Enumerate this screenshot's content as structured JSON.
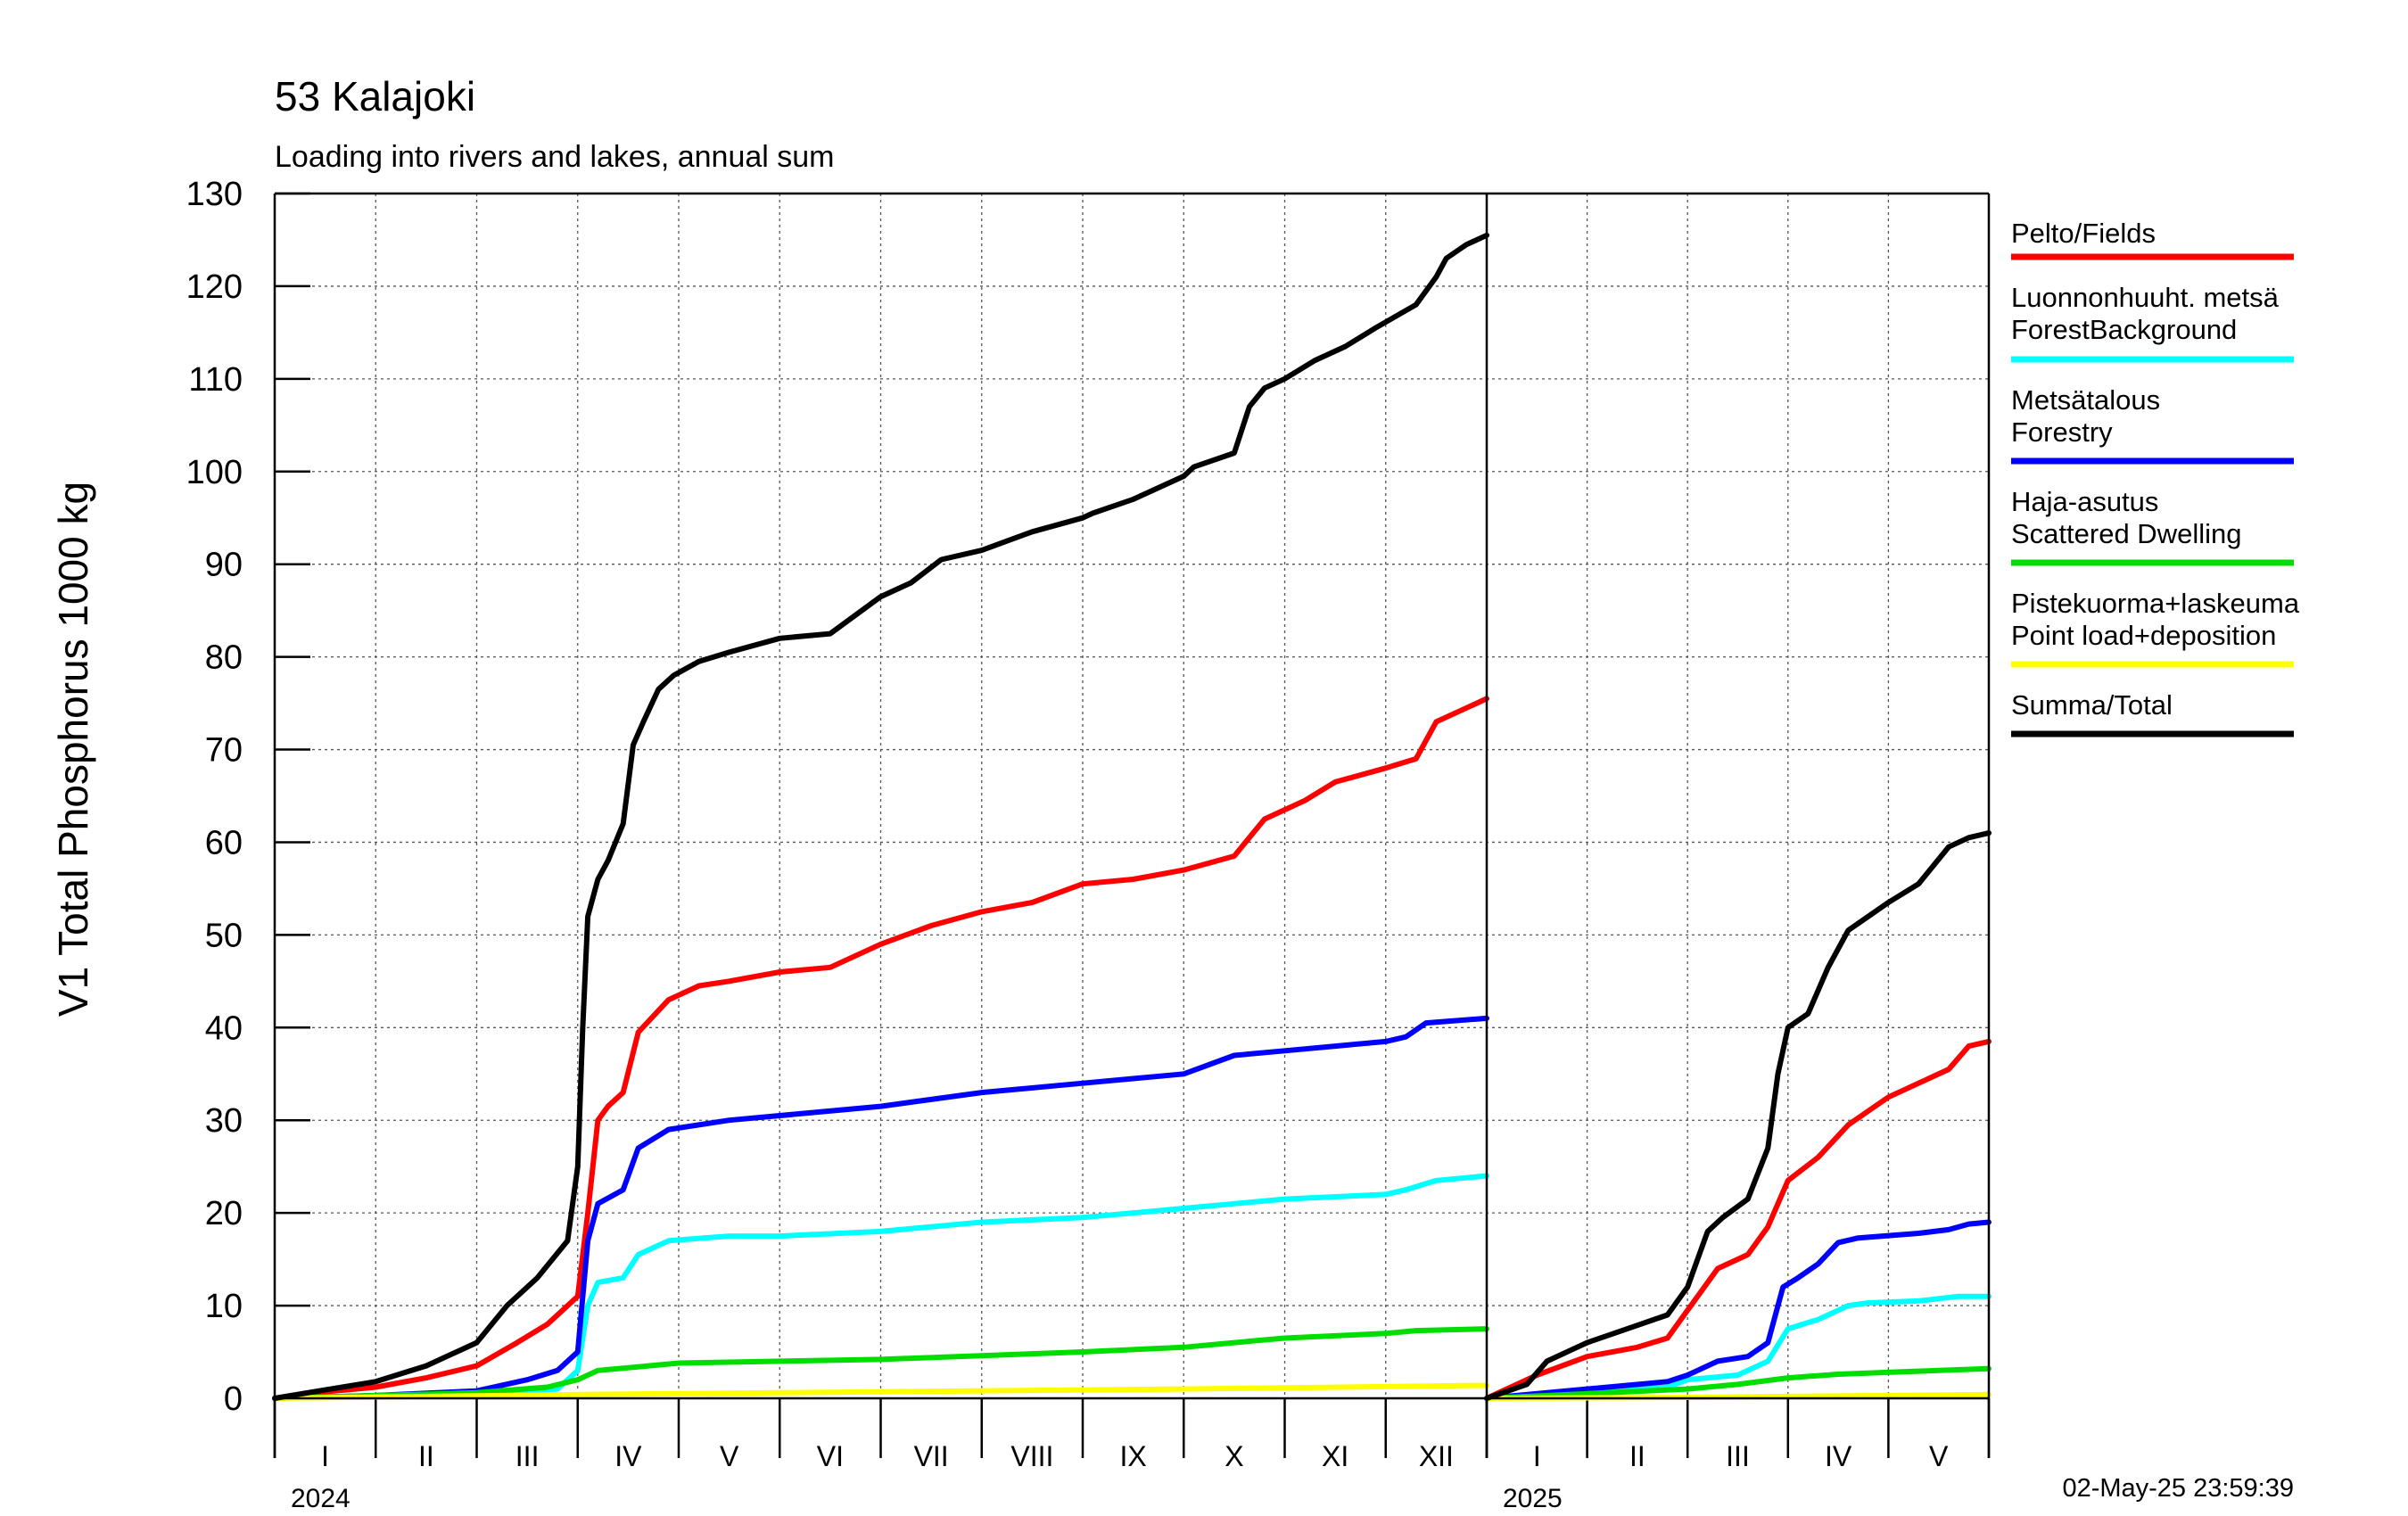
{
  "header": {
    "title": "53 Kalajoki",
    "subtitle": "Loading into rivers and lakes, annual sum"
  },
  "timestamp": "02-May-25 23:59:39",
  "chart_data": {
    "type": "line",
    "ylabel": "V1 Total Phosphorus 1000 kg",
    "ylim": [
      0,
      130
    ],
    "yticks": [
      "0",
      "10",
      "20",
      "30",
      "40",
      "50",
      "60",
      "70",
      "80",
      "90",
      "100",
      "110",
      "120",
      "130"
    ],
    "grid": true,
    "legend_position": "right",
    "panels": [
      {
        "year": "2024",
        "months": [
          "I",
          "II",
          "III",
          "IV",
          "V",
          "VI",
          "VII",
          "VIII",
          "IX",
          "X",
          "XI",
          "XII"
        ],
        "x_unit": "month",
        "series": [
          {
            "name": "Pelto/Fields",
            "color": "#ff0000",
            "x": [
              0,
              0.5,
              1,
              1.5,
              2,
              2.4,
              2.7,
              3.0,
              3.1,
              3.2,
              3.3,
              3.45,
              3.6,
              3.9,
              4.2,
              4.5,
              5,
              5.5,
              6,
              6.5,
              7,
              7.5,
              8,
              8.5,
              9,
              9.5,
              9.8,
              10.2,
              10.5,
              11,
              11.3,
              11.5,
              11.8,
              12
            ],
            "y": [
              0,
              0.7,
              1.2,
              2.2,
              3.5,
              6,
              8,
              11,
              20,
              30,
              31.5,
              33,
              39.5,
              43,
              44.5,
              45,
              46,
              46.5,
              49,
              51,
              52.5,
              53.5,
              55.5,
              56,
              57,
              58.5,
              62.5,
              64.5,
              66.5,
              68,
              69,
              73,
              74.5,
              75.5
            ]
          },
          {
            "name": "Luonnonhuuht. metsä ForestBackground",
            "color": "#00ffff",
            "x": [
              0,
              1,
              2,
              2.8,
              3.0,
              3.1,
              3.2,
              3.45,
              3.6,
              3.9,
              4.5,
              5,
              6,
              7,
              8,
              9,
              9.5,
              10,
              11,
              11.2,
              11.5,
              12
            ],
            "y": [
              0,
              0.2,
              0.4,
              1.0,
              3,
              10,
              12.5,
              13,
              15.5,
              17,
              17.5,
              17.5,
              18,
              19,
              19.5,
              20.5,
              21,
              21.5,
              22,
              22.5,
              23.5,
              24
            ]
          },
          {
            "name": "Metsätalous Forestry",
            "color": "#0000ff",
            "x": [
              0,
              1,
              2,
              2.5,
              2.8,
              3.0,
              3.1,
              3.2,
              3.45,
              3.6,
              3.9,
              4.5,
              5,
              6,
              7,
              8,
              8.5,
              9,
              9.5,
              10,
              10.5,
              11,
              11.2,
              11.4,
              12
            ],
            "y": [
              0,
              0.3,
              0.8,
              2.0,
              3.0,
              5,
              17,
              21,
              22.5,
              27,
              29,
              30,
              30.5,
              31.5,
              33,
              34,
              34.5,
              35,
              37,
              37.5,
              38,
              38.5,
              39,
              40.5,
              41
            ]
          },
          {
            "name": "Haja-asutus Scattered Dwelling",
            "color": "#00dd00",
            "x": [
              0,
              2,
              2.7,
              3.0,
              3.2,
              3.5,
              4,
              6,
              8,
              9,
              9.5,
              10,
              11,
              11.3,
              12
            ],
            "y": [
              0,
              0.6,
              1.2,
              2.0,
              3.0,
              3.3,
              3.8,
              4.2,
              5,
              5.5,
              6.0,
              6.5,
              7,
              7.3,
              7.5
            ]
          },
          {
            "name": "Pistekuorma+laskeuma Point load+deposition",
            "color": "#ffff00",
            "x": [
              0,
              3,
              6,
              9,
              12
            ],
            "y": [
              0,
              0.4,
              0.7,
              1.0,
              1.4
            ]
          },
          {
            "name": "Summa/Total",
            "color": "#000000",
            "x": [
              0,
              0.5,
              1,
              1.5,
              2,
              2.3,
              2.6,
              2.9,
              3.0,
              3.05,
              3.1,
              3.2,
              3.3,
              3.45,
              3.55,
              3.65,
              3.8,
              3.95,
              4.2,
              4.5,
              5,
              5.5,
              6,
              6.3,
              6.6,
              7,
              7.5,
              8,
              8.1,
              8.5,
              9,
              9.1,
              9.5,
              9.65,
              9.8,
              10,
              10.3,
              10.6,
              10.9,
              11.3,
              11.5,
              11.6,
              11.8,
              12
            ],
            "y": [
              0,
              0.9,
              1.8,
              3.5,
              6,
              10,
              13,
              17,
              25,
              40,
              52,
              56,
              58,
              62,
              70.5,
              73,
              76.5,
              78,
              79.5,
              80.5,
              82,
              82.5,
              86.5,
              88,
              90.5,
              91.5,
              93.5,
              95,
              95.5,
              97,
              99.5,
              100.5,
              102,
              107,
              109,
              110,
              112,
              113.5,
              115.5,
              118,
              121,
              123,
              124.5,
              125.5
            ]
          }
        ]
      },
      {
        "year": "2025",
        "months": [
          "I",
          "II",
          "III",
          "IV",
          "V"
        ],
        "x_unit": "month",
        "series": [
          {
            "name": "Pelto/Fields",
            "color": "#ff0000",
            "x": [
              0,
              0.5,
              1,
              1.5,
              1.8,
              2,
              2.3,
              2.6,
              2.8,
              3.0,
              3.3,
              3.6,
              3.8,
              4,
              4.3,
              4.6,
              4.8,
              5
            ],
            "y": [
              0,
              2.5,
              4.5,
              5.5,
              6.5,
              9.5,
              14,
              15.5,
              18.5,
              23.5,
              26,
              29.5,
              31,
              32.5,
              34,
              35.5,
              38,
              38.5
            ]
          },
          {
            "name": "Luonnonhuuht. metsä ForestBackground",
            "color": "#00ffff",
            "x": [
              0,
              1,
              1.8,
              2,
              2.5,
              2.8,
              3.0,
              3.3,
              3.6,
              3.8,
              4.3,
              4.7,
              5
            ],
            "y": [
              0,
              0.5,
              1.2,
              2.0,
              2.5,
              4,
              7.5,
              8.5,
              10,
              10.3,
              10.5,
              11,
              11
            ]
          },
          {
            "name": "Metsätalous Forestry",
            "color": "#0000ff",
            "x": [
              0,
              1,
              1.8,
              2,
              2.3,
              2.6,
              2.8,
              2.95,
              3.1,
              3.3,
              3.5,
              3.7,
              4.3,
              4.6,
              4.8,
              5
            ],
            "y": [
              0,
              1,
              1.8,
              2.5,
              4,
              4.5,
              6,
              12,
              13,
              14.5,
              16.8,
              17.3,
              17.8,
              18.2,
              18.8,
              19
            ]
          },
          {
            "name": "Haja-asutus Scattered Dwelling",
            "color": "#00dd00",
            "x": [
              0,
              1,
              2,
              2.5,
              3,
              3.5,
              4,
              4.5,
              5
            ],
            "y": [
              0,
              0.5,
              1.0,
              1.5,
              2.2,
              2.6,
              2.8,
              3.0,
              3.2
            ]
          },
          {
            "name": "Pistekuorma+laskeuma Point load+deposition",
            "color": "#ffff00",
            "x": [
              0,
              2,
              3,
              4,
              5
            ],
            "y": [
              0,
              0.1,
              0.2,
              0.3,
              0.4
            ]
          },
          {
            "name": "Summa/Total",
            "color": "#000000",
            "x": [
              0,
              0.4,
              0.6,
              1,
              1.4,
              1.8,
              2,
              2.2,
              2.35,
              2.6,
              2.8,
              2.9,
              3.0,
              3.2,
              3.4,
              3.6,
              3.8,
              4,
              4.3,
              4.6,
              4.8,
              5
            ],
            "y": [
              0,
              1.5,
              4,
              6,
              7.5,
              9,
              12,
              18,
              19.5,
              21.5,
              27,
              35,
              40,
              41.5,
              46.5,
              50.5,
              52,
              53.5,
              55.5,
              59.5,
              60.5,
              61
            ]
          }
        ]
      }
    ],
    "legend": [
      {
        "line1": "Pelto/Fields",
        "line2": "",
        "color": "#ff0000"
      },
      {
        "line1": "Luonnonhuuht. metsä",
        "line2": "ForestBackground",
        "color": "#00ffff"
      },
      {
        "line1": "Metsätalous",
        "line2": "Forestry",
        "color": "#0000ff"
      },
      {
        "line1": "Haja-asutus",
        "line2": "Scattered Dwelling",
        "color": "#00dd00"
      },
      {
        "line1": "Pistekuorma+laskeuma",
        "line2": "Point load+deposition",
        "color": "#ffff00"
      },
      {
        "line1": "Summa/Total",
        "line2": "",
        "color": "#000000"
      }
    ]
  }
}
